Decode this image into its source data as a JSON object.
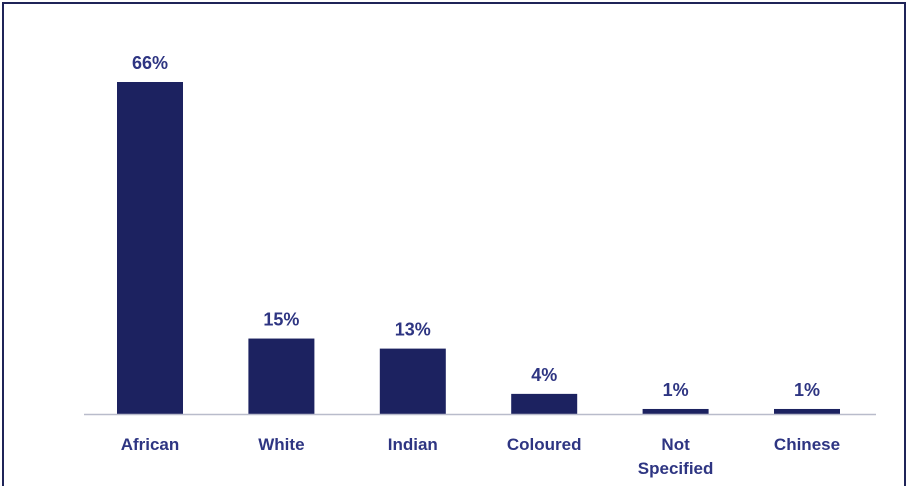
{
  "chart_data": {
    "type": "bar",
    "categories": [
      "African",
      "White",
      "Indian",
      "Coloured",
      "Not Specified",
      "Chinese"
    ],
    "category_lines": [
      [
        "African"
      ],
      [
        "White"
      ],
      [
        "Indian"
      ],
      [
        "Coloured"
      ],
      [
        "Not",
        "Specified"
      ],
      [
        "Chinese"
      ]
    ],
    "values": [
      66,
      15,
      13,
      4,
      1,
      1
    ],
    "value_labels": [
      "66%",
      "15%",
      "13%",
      "4%",
      "1%",
      "1%"
    ],
    "ylim": [
      0,
      66
    ],
    "grid": false,
    "legend": "none",
    "colors": {
      "bar": "#1c2260",
      "text": "#2e3582",
      "axis": "#b9bccb",
      "frame": "#1f2458"
    }
  }
}
